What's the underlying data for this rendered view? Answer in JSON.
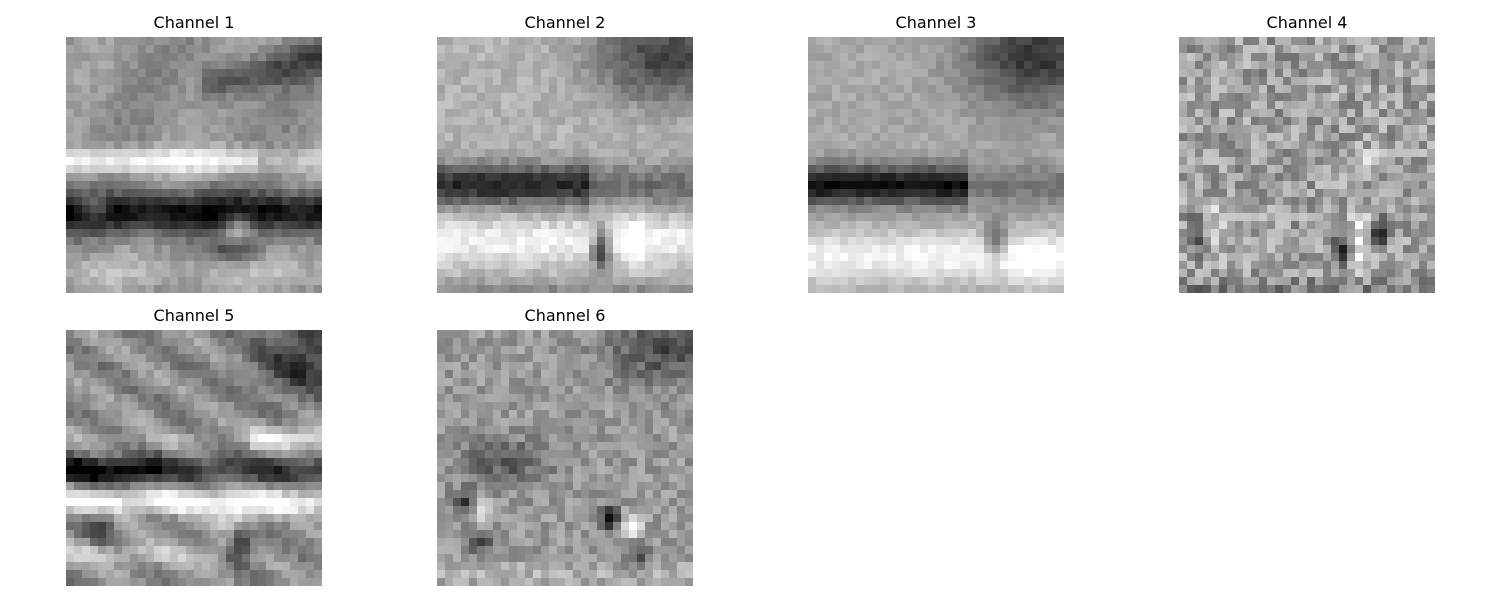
{
  "figure": {
    "panels": [
      {
        "title": "Channel 1"
      },
      {
        "title": "Channel 2"
      },
      {
        "title": "Channel 3"
      },
      {
        "title": "Channel 4"
      },
      {
        "title": "Channel 5"
      },
      {
        "title": "Channel 6"
      }
    ],
    "colormap": "gray"
  }
}
